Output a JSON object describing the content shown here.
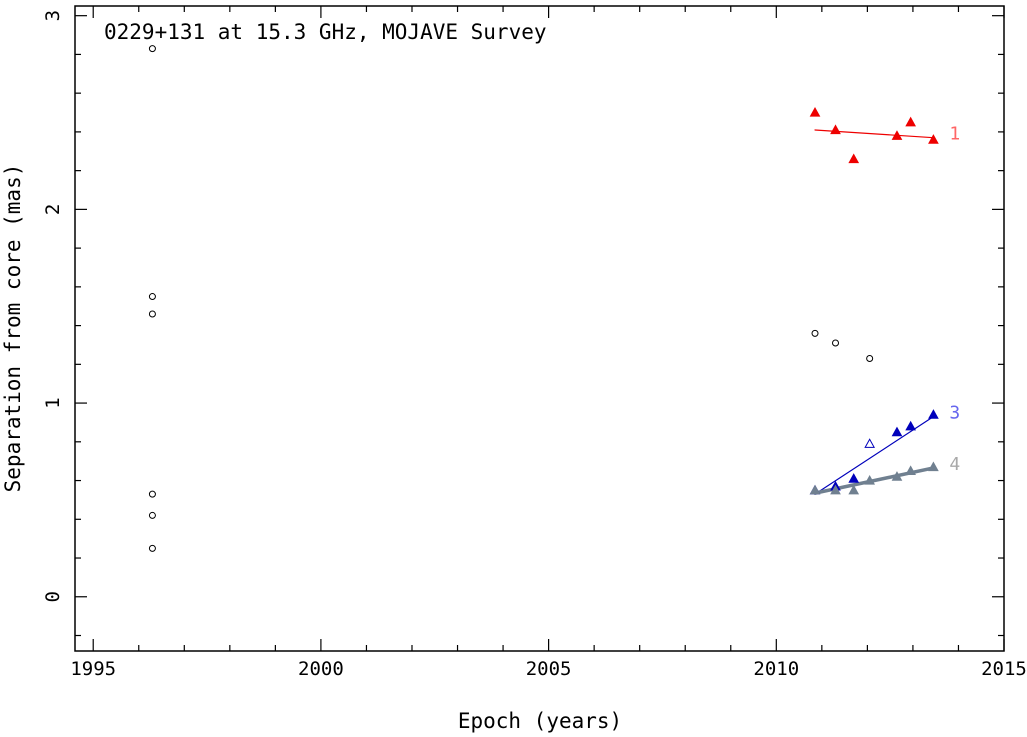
{
  "chart_data": {
    "type": "scatter",
    "title": "0229+131 at 15.3 GHz, MOJAVE Survey",
    "xlabel": "Epoch (years)",
    "ylabel": "Separation from core (mas)",
    "xlim": [
      1994.6,
      2015
    ],
    "ylim": [
      -0.28,
      3.05
    ],
    "x_ticks": [
      1995,
      2000,
      2005,
      2010,
      2015
    ],
    "x_tick_labels": [
      "1995",
      "2000",
      "2005",
      "2010",
      "2015"
    ],
    "y_ticks": [
      0,
      1,
      2,
      3
    ],
    "y_tick_labels": [
      "0",
      "1",
      "2",
      "3"
    ],
    "grid": false,
    "unassigned_points": {
      "name": "unassigned",
      "color": "#000000",
      "x": [
        1996.3,
        1996.3,
        1996.3,
        1996.3,
        1996.3,
        1996.3,
        2010.85,
        2011.3,
        2012.05
      ],
      "y": [
        2.83,
        1.55,
        1.46,
        0.53,
        0.42,
        0.25,
        1.36,
        1.31,
        1.23
      ]
    },
    "series": [
      {
        "name": "1",
        "color": "#ee0000",
        "label_color": "#ff6666",
        "x": [
          2010.85,
          2011.3,
          2011.7,
          2012.65,
          2012.95,
          2013.45
        ],
        "y": [
          2.5,
          2.41,
          2.26,
          2.38,
          2.45,
          2.36
        ],
        "open": [
          false,
          false,
          false,
          false,
          false,
          false
        ],
        "fit": {
          "x": [
            2010.85,
            2013.45
          ],
          "y": [
            2.41,
            2.37
          ]
        },
        "fit_width": 1.2
      },
      {
        "name": "3",
        "color": "#0000bb",
        "label_color": "#6666ee",
        "x": [
          2010.85,
          2011.3,
          2011.7,
          2012.05,
          2012.65,
          2012.95,
          2013.45
        ],
        "y": [
          0.55,
          0.57,
          0.61,
          0.79,
          0.85,
          0.88,
          0.94
        ],
        "open": [
          false,
          false,
          false,
          true,
          false,
          false,
          false
        ],
        "fit": {
          "x": [
            2010.85,
            2013.45
          ],
          "y": [
            0.53,
            0.93
          ]
        },
        "fit_width": 1.2
      },
      {
        "name": "4",
        "color": "#708090",
        "label_color": "#a9a9a9",
        "x": [
          2010.85,
          2011.3,
          2011.7,
          2012.05,
          2012.65,
          2012.95,
          2013.45
        ],
        "y": [
          0.55,
          0.55,
          0.55,
          0.6,
          0.62,
          0.65,
          0.67
        ],
        "open": [
          false,
          false,
          false,
          false,
          false,
          false,
          false
        ],
        "fit": {
          "x": [
            2010.85,
            2013.45
          ],
          "y": [
            0.535,
            0.665
          ]
        },
        "fit_width": 3.5
      }
    ]
  }
}
